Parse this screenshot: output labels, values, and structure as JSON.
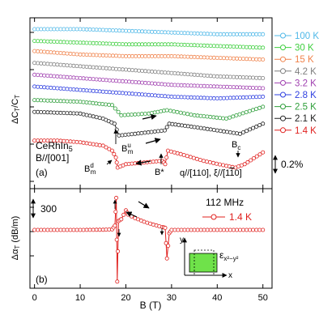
{
  "chart_data": [
    {
      "type": "line",
      "panel_label": "(a)",
      "ylabel": "ΔC_T/C_T",
      "xlim": [
        -1,
        52
      ],
      "sample": "CeRhIn5",
      "field_dir": "B//[001]",
      "geometry": "q//[110], ξ//[1-10]",
      "scale_bar": "0.2%",
      "annotations": [
        "B_m^u",
        "B_m^d",
        "B*",
        "B_c"
      ],
      "series": [
        {
          "name": "100 K",
          "color": "#4FB8E8",
          "marker": "circle",
          "x": [
            0,
            10,
            20,
            30,
            40,
            50
          ],
          "y": [
            1.0,
            1.0,
            0.99,
            0.98,
            0.97,
            0.97
          ]
        },
        {
          "name": "30 K",
          "color": "#3ECF3E",
          "marker": "circle",
          "x": [
            0,
            10,
            20,
            30,
            40,
            50
          ],
          "y": [
            0.93,
            0.92,
            0.91,
            0.91,
            0.9,
            0.89
          ]
        },
        {
          "name": "15 K",
          "color": "#F0824A",
          "marker": "circle",
          "x": [
            0,
            10,
            20,
            30,
            40,
            50
          ],
          "y": [
            0.87,
            0.85,
            0.84,
            0.84,
            0.83,
            0.82
          ]
        },
        {
          "name": "4.2 K",
          "color": "#7F7F7F",
          "marker": "circle",
          "x": [
            0,
            10,
            20,
            30,
            40,
            50
          ],
          "y": [
            0.8,
            0.78,
            0.76,
            0.74,
            0.72,
            0.71
          ]
        },
        {
          "name": "3.2 K",
          "color": "#A040B0",
          "marker": "circle",
          "x": [
            0,
            10,
            20,
            30,
            40,
            50
          ],
          "y": [
            0.73,
            0.71,
            0.69,
            0.67,
            0.66,
            0.65
          ]
        },
        {
          "name": "2.8 K",
          "color": "#2E3FE0",
          "marker": "circle",
          "x": [
            0,
            10,
            20,
            30,
            40,
            50
          ],
          "y": [
            0.66,
            0.64,
            0.62,
            0.6,
            0.59,
            0.6
          ]
        },
        {
          "name": "2.5 K",
          "color": "#2E9E3A",
          "marker": "circle",
          "x": [
            0,
            10,
            17,
            19,
            25,
            29,
            35,
            42,
            50
          ],
          "y": [
            0.58,
            0.57,
            0.55,
            0.49,
            0.5,
            0.52,
            0.49,
            0.47,
            0.54
          ]
        },
        {
          "name": "2.1 K",
          "color": "#202020",
          "marker": "circle",
          "x": [
            0,
            10,
            15,
            17.5,
            18.5,
            22,
            28.5,
            29.5,
            35,
            40,
            45,
            50
          ],
          "y": [
            0.51,
            0.5,
            0.47,
            0.44,
            0.37,
            0.38,
            0.4,
            0.44,
            0.42,
            0.4,
            0.38,
            0.44
          ]
        },
        {
          "name": "1.4 K",
          "color": "#E0201E",
          "marker": "circle",
          "x": [
            0,
            5,
            10,
            15,
            17,
            17.8,
            18.2,
            20,
            24,
            28,
            28.6,
            29.2,
            32,
            37,
            42,
            44,
            46,
            50
          ],
          "y": [
            0.34,
            0.34,
            0.33,
            0.31,
            0.28,
            0.24,
            0.18,
            0.2,
            0.21,
            0.22,
            0.2,
            0.28,
            0.26,
            0.22,
            0.19,
            0.18,
            0.2,
            0.27
          ]
        }
      ]
    },
    {
      "type": "line",
      "panel_label": "(b)",
      "ylabel": "Δα_T (dB/m)",
      "xlabel": "B (T)",
      "xlim": [
        -1,
        52
      ],
      "xticks": [
        0,
        10,
        20,
        30,
        40,
        50
      ],
      "scale_bar": "300",
      "frequency": "112 MHz",
      "strain_label": "ε_x²−y²",
      "inset_axes": [
        "x",
        "y"
      ],
      "series": [
        {
          "name": "1.4 K",
          "color": "#E0201E",
          "marker": "circle",
          "x": [
            0,
            5,
            10,
            15,
            17,
            17.6,
            17.9,
            18.1,
            18.4,
            19,
            20,
            20.5,
            22,
            24,
            26,
            28,
            28.6,
            29,
            29.5,
            30,
            35,
            40,
            45,
            50
          ],
          "y": [
            0,
            0,
            0,
            5,
            15,
            120,
            900,
            -1450,
            250,
            300,
            550,
            430,
            330,
            230,
            150,
            80,
            60,
            -800,
            -90,
            0,
            0,
            0,
            0,
            0
          ]
        }
      ]
    }
  ]
}
